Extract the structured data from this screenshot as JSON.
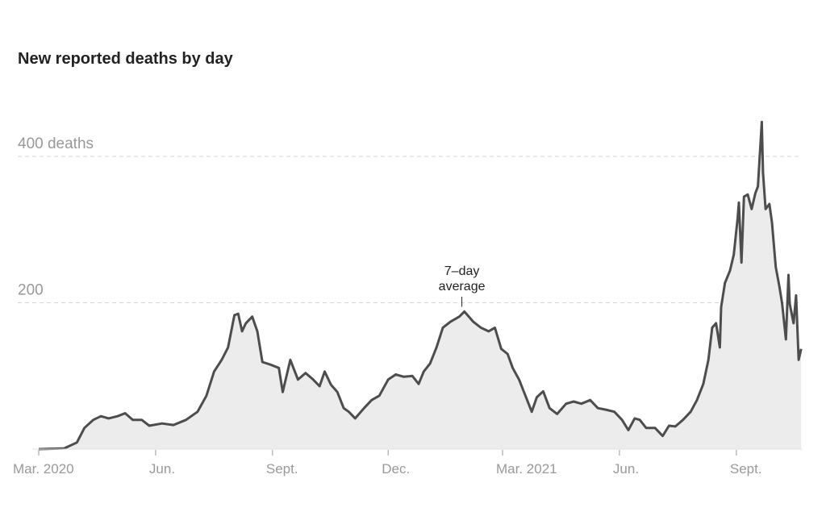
{
  "chart_data": {
    "type": "area",
    "title": "New reported deaths by day",
    "xlabel": "",
    "ylabel": "",
    "x_units": "days since Mar. 1, 2020",
    "xlim": [
      0,
      600
    ],
    "ylim": [
      0,
      450
    ],
    "grid": true,
    "y_ticks": [
      {
        "value": 200,
        "label": "200"
      },
      {
        "value": 400,
        "label": "400 deaths"
      }
    ],
    "x_ticks": [
      {
        "value": 0,
        "label": "Mar. 2020"
      },
      {
        "value": 92,
        "label": "Jun."
      },
      {
        "value": 184,
        "label": "Sept."
      },
      {
        "value": 275,
        "label": "Dec."
      },
      {
        "value": 365,
        "label": "Mar. 2021"
      },
      {
        "value": 457,
        "label": "Jun."
      },
      {
        "value": 549,
        "label": "Sept."
      }
    ],
    "annotation": {
      "lines": [
        "7–day",
        "average"
      ],
      "x": 333,
      "y": 190
    },
    "colors": {
      "line": "#4d4d4d",
      "fill": "#ececec",
      "grid": "#d6d6d6",
      "axis": "#999999"
    },
    "series": [
      {
        "name": "7-day average",
        "points": [
          [
            0,
            0
          ],
          [
            20,
            1
          ],
          [
            30,
            9
          ],
          [
            36,
            29
          ],
          [
            43,
            40
          ],
          [
            49,
            45
          ],
          [
            55,
            42
          ],
          [
            62,
            45
          ],
          [
            68,
            49
          ],
          [
            74,
            40
          ],
          [
            81,
            40
          ],
          [
            87,
            32
          ],
          [
            97,
            35
          ],
          [
            106,
            33
          ],
          [
            116,
            40
          ],
          [
            125,
            51
          ],
          [
            132,
            73
          ],
          [
            138,
            106
          ],
          [
            144,
            122
          ],
          [
            149,
            139
          ],
          [
            154,
            183
          ],
          [
            157,
            185
          ],
          [
            160,
            161
          ],
          [
            163,
            172
          ],
          [
            168,
            181
          ],
          [
            172,
            161
          ],
          [
            176,
            119
          ],
          [
            183,
            115
          ],
          [
            189,
            111
          ],
          [
            192,
            78
          ],
          [
            198,
            122
          ],
          [
            204,
            95
          ],
          [
            210,
            104
          ],
          [
            216,
            95
          ],
          [
            221,
            86
          ],
          [
            225,
            106
          ],
          [
            230,
            88
          ],
          [
            235,
            78
          ],
          [
            240,
            56
          ],
          [
            244,
            51
          ],
          [
            249,
            42
          ],
          [
            256,
            56
          ],
          [
            262,
            67
          ],
          [
            268,
            73
          ],
          [
            275,
            95
          ],
          [
            281,
            102
          ],
          [
            287,
            99
          ],
          [
            294,
            100
          ],
          [
            299,
            89
          ],
          [
            303,
            106
          ],
          [
            308,
            117
          ],
          [
            313,
            139
          ],
          [
            318,
            166
          ],
          [
            324,
            174
          ],
          [
            331,
            181
          ],
          [
            335,
            188
          ],
          [
            342,
            174
          ],
          [
            348,
            166
          ],
          [
            354,
            161
          ],
          [
            359,
            166
          ],
          [
            364,
            137
          ],
          [
            369,
            130
          ],
          [
            373,
            111
          ],
          [
            378,
            95
          ],
          [
            383,
            73
          ],
          [
            388,
            51
          ],
          [
            392,
            71
          ],
          [
            397,
            79
          ],
          [
            402,
            56
          ],
          [
            408,
            48
          ],
          [
            415,
            62
          ],
          [
            421,
            65
          ],
          [
            427,
            62
          ],
          [
            434,
            67
          ],
          [
            440,
            56
          ],
          [
            446,
            54
          ],
          [
            453,
            51
          ],
          [
            459,
            40
          ],
          [
            464,
            26
          ],
          [
            469,
            42
          ],
          [
            473,
            40
          ],
          [
            478,
            29
          ],
          [
            485,
            29
          ],
          [
            491,
            18
          ],
          [
            496,
            32
          ],
          [
            501,
            31
          ],
          [
            507,
            40
          ],
          [
            513,
            51
          ],
          [
            518,
            67
          ],
          [
            523,
            89
          ],
          [
            527,
            122
          ],
          [
            530,
            166
          ],
          [
            533,
            172
          ],
          [
            536,
            139
          ],
          [
            537,
            194
          ],
          [
            540,
            227
          ],
          [
            544,
            244
          ],
          [
            547,
            266
          ],
          [
            550,
            315
          ],
          [
            551,
            337
          ],
          [
            553,
            255
          ],
          [
            555,
            345
          ],
          [
            558,
            348
          ],
          [
            561,
            328
          ],
          [
            564,
            350
          ],
          [
            566,
            359
          ],
          [
            569,
            447
          ],
          [
            570,
            378
          ],
          [
            572,
            328
          ],
          [
            575,
            335
          ],
          [
            577,
            310
          ],
          [
            580,
            249
          ],
          [
            583,
            221
          ],
          [
            585,
            199
          ],
          [
            588,
            150
          ],
          [
            590,
            238
          ],
          [
            591,
            199
          ],
          [
            594,
            172
          ],
          [
            596,
            210
          ],
          [
            598,
            122
          ],
          [
            600,
            137
          ]
        ]
      }
    ]
  }
}
